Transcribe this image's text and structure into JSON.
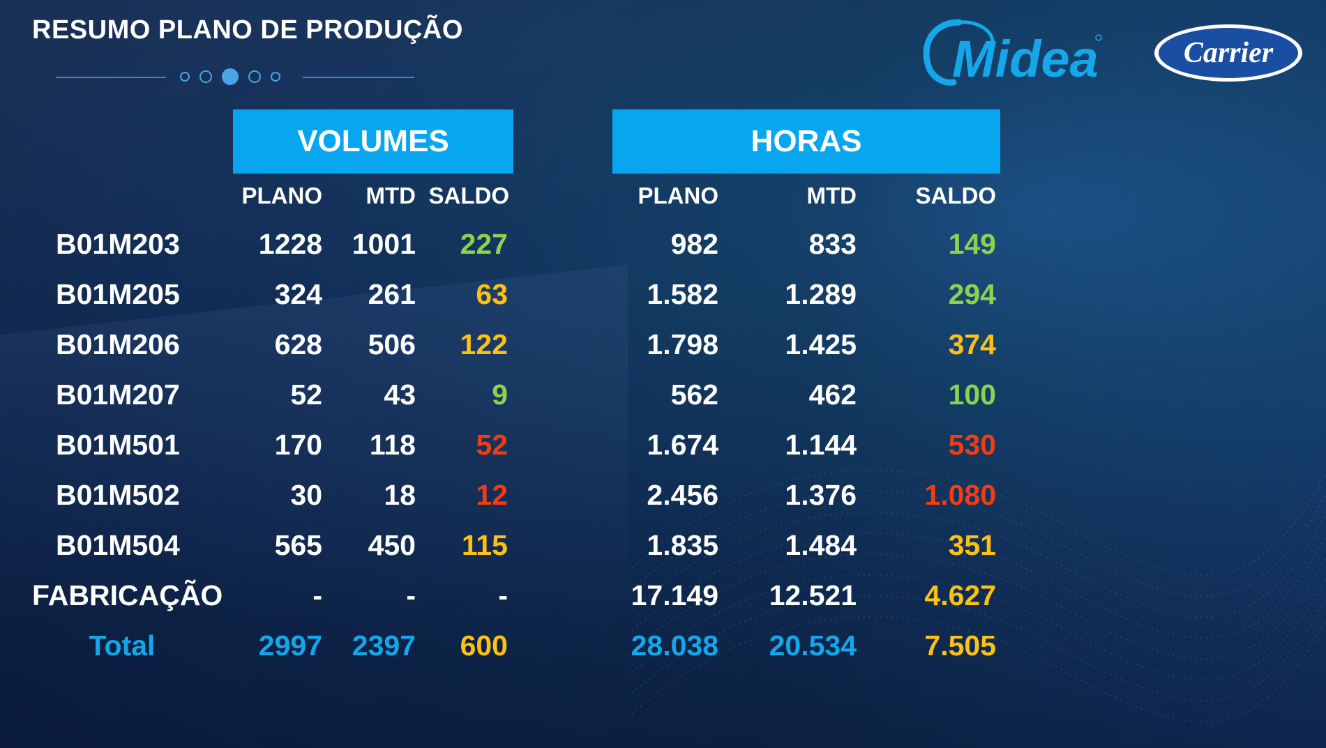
{
  "title": "RESUMO PLANO DE PRODUÇÃO",
  "logos": {
    "midea": "Midea",
    "carrier": "Carrier"
  },
  "colors": {
    "header_bg": "#08a6ee",
    "green": "#8ed14e",
    "yellow": "#fdc114",
    "red": "#f53b12",
    "blue": "#15a6ea",
    "white": "#ffffff"
  },
  "groups": {
    "volumes": {
      "title": "VOLUMES",
      "cols": [
        "PLANO",
        "MTD",
        "SALDO"
      ]
    },
    "horas": {
      "title": "HORAS",
      "cols": [
        "PLANO",
        "MTD",
        "SALDO"
      ]
    }
  },
  "rows": [
    {
      "label": "B01M203",
      "v_plano": "1228",
      "v_mtd": "1001",
      "v_saldo": "227",
      "v_color": "green",
      "h_plano": "982",
      "h_mtd": "833",
      "h_saldo": "149",
      "h_color": "green"
    },
    {
      "label": "B01M205",
      "v_plano": "324",
      "v_mtd": "261",
      "v_saldo": "63",
      "v_color": "yellow",
      "h_plano": "1.582",
      "h_mtd": "1.289",
      "h_saldo": "294",
      "h_color": "green"
    },
    {
      "label": "B01M206",
      "v_plano": "628",
      "v_mtd": "506",
      "v_saldo": "122",
      "v_color": "yellow",
      "h_plano": "1.798",
      "h_mtd": "1.425",
      "h_saldo": "374",
      "h_color": "yellow"
    },
    {
      "label": "B01M207",
      "v_plano": "52",
      "v_mtd": "43",
      "v_saldo": "9",
      "v_color": "green",
      "h_plano": "562",
      "h_mtd": "462",
      "h_saldo": "100",
      "h_color": "green"
    },
    {
      "label": "B01M501",
      "v_plano": "170",
      "v_mtd": "118",
      "v_saldo": "52",
      "v_color": "red",
      "h_plano": "1.674",
      "h_mtd": "1.144",
      "h_saldo": "530",
      "h_color": "red"
    },
    {
      "label": "B01M502",
      "v_plano": "30",
      "v_mtd": "18",
      "v_saldo": "12",
      "v_color": "red",
      "h_plano": "2.456",
      "h_mtd": "1.376",
      "h_saldo": "1.080",
      "h_color": "red"
    },
    {
      "label": "B01M504",
      "v_plano": "565",
      "v_mtd": "450",
      "v_saldo": "115",
      "v_color": "yellow",
      "h_plano": "1.835",
      "h_mtd": "1.484",
      "h_saldo": "351",
      "h_color": "yellow"
    },
    {
      "label": "FABRICAÇÃO",
      "v_plano": "-",
      "v_mtd": "-",
      "v_saldo": "-",
      "v_color": "white",
      "h_plano": "17.149",
      "h_mtd": "12.521",
      "h_saldo": "4.627",
      "h_color": "yellow"
    }
  ],
  "total": {
    "label": "Total",
    "v_plano": "2997",
    "v_mtd": "2397",
    "v_saldo": "600",
    "h_plano": "28.038",
    "h_mtd": "20.534",
    "h_saldo": "7.505"
  }
}
